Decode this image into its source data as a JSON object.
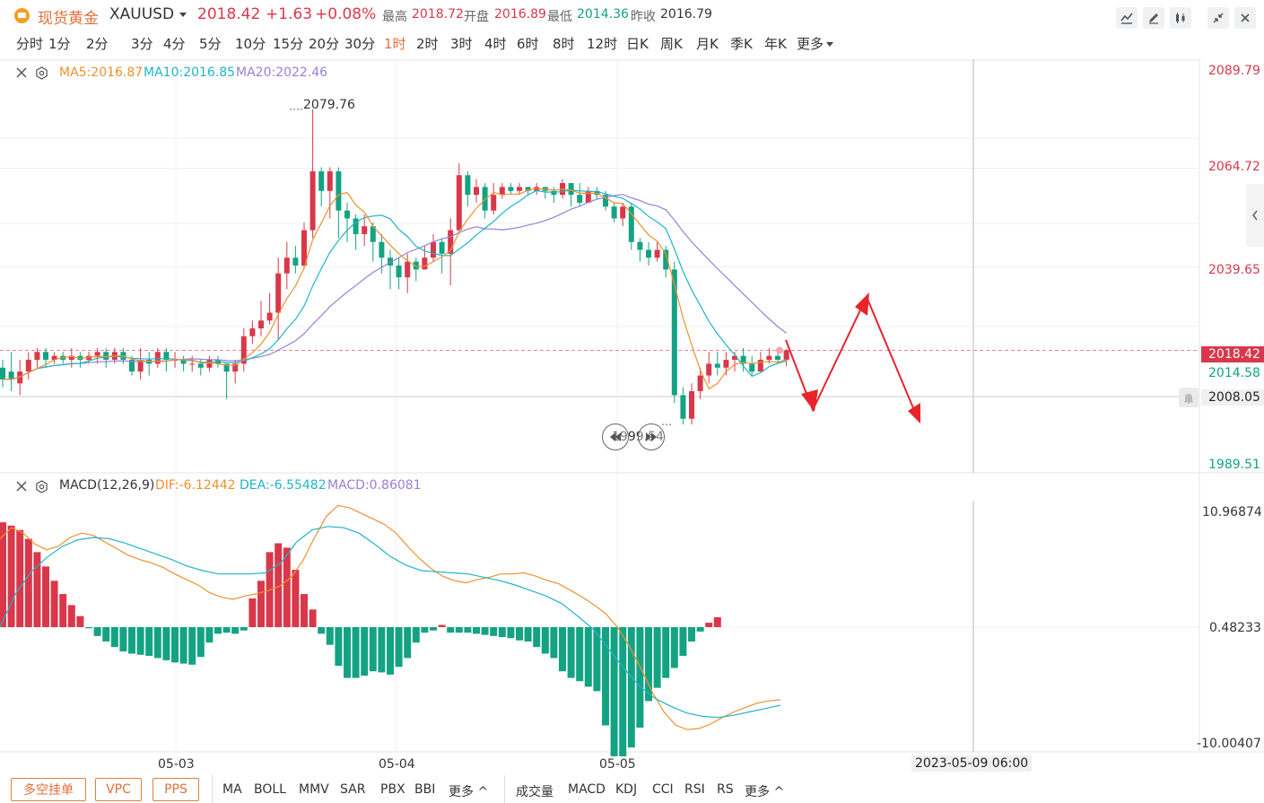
{
  "header": {
    "name": "现货黄金",
    "symbol": "XAUUSD",
    "price": "2018.42",
    "change": "+1.63",
    "change_pct": "+0.08%",
    "high_label": "最高",
    "high": "2018.72",
    "open_label": "开盘",
    "open": "2016.89",
    "low_label": "最低",
    "low": "2014.36",
    "prev_label": "昨收",
    "prev": "2016.79"
  },
  "periods": [
    "分时",
    "1分",
    "2分",
    "3分",
    "4分",
    "5分",
    "10分",
    "15分",
    "20分",
    "30分",
    "1时",
    "2时",
    "3时",
    "4时",
    "6时",
    "8时",
    "12时",
    "日K",
    "周K",
    "月K",
    "季K",
    "年K",
    "更多"
  ],
  "active_period": "1时",
  "main_pane": {
    "ma5": "MA5:2016.87",
    "ma10": "MA10:2016.85",
    "ma20": "MA20:2022.46",
    "price_axis": [
      "2089.79",
      "2064.72",
      "2039.65",
      "2014.58",
      "1989.51"
    ],
    "current_price_tag": "2018.42",
    "crosshair_price_tag": "2008.05",
    "high_annotation": "2079.76",
    "low_annotation": "1999.54"
  },
  "macd_pane": {
    "title": "MACD(12,26,9)",
    "dif": "DIF:-6.12442",
    "dea": "DEA:-6.55482",
    "macd": "MACD:0.86081",
    "axis": [
      "10.96874",
      "0.48233",
      "-10.00407"
    ]
  },
  "time_axis": [
    "05-03",
    "05-04",
    "05-05"
  ],
  "crosshair_time": "2023-05-09 06:00",
  "bottom": {
    "orders": [
      "多空挂单",
      "VPC",
      "PPS"
    ],
    "indicators_main": [
      "MA",
      "BOLL",
      "MMV",
      "SAR",
      "PBX",
      "BBI",
      "更多 ^"
    ],
    "indicators_sub": [
      "成交量",
      "MACD",
      "KDJ",
      "CCI",
      "RSI",
      "RS",
      "更多 ^"
    ]
  },
  "colors": {
    "up": "#d9384a",
    "down": "#13a383",
    "ma5": "#f0902e",
    "ma10": "#1fb5c8",
    "ma20": "#9a7fd8",
    "accent": "#e0703a"
  },
  "chart_data": {
    "type": "candlestick",
    "ylim": [
      1989.51,
      2089.79
    ],
    "candles": [
      [
        2014,
        2011,
        2016,
        2009
      ],
      [
        2013,
        2011,
        2018,
        2008
      ],
      [
        2010,
        2013,
        2016,
        2007
      ],
      [
        2013,
        2016,
        2018,
        2011
      ],
      [
        2016,
        2018,
        2019,
        2014
      ],
      [
        2018,
        2016,
        2019,
        2014
      ],
      [
        2016,
        2017,
        2018,
        2015
      ],
      [
        2017,
        2016,
        2018,
        2015
      ],
      [
        2016,
        2017,
        2019,
        2014
      ],
      [
        2017,
        2016,
        2018,
        2014
      ],
      [
        2016,
        2017,
        2018,
        2015
      ],
      [
        2017,
        2018,
        2019,
        2015
      ],
      [
        2018,
        2016,
        2019,
        2014
      ],
      [
        2016,
        2018,
        2019,
        2015
      ],
      [
        2018,
        2016,
        2019,
        2015
      ],
      [
        2016,
        2013,
        2017,
        2012
      ],
      [
        2013,
        2016,
        2019,
        2011
      ],
      [
        2016,
        2015,
        2018,
        2012
      ],
      [
        2015,
        2018,
        2019,
        2014
      ],
      [
        2018,
        2016,
        2019,
        2013
      ],
      [
        2016,
        2016,
        2018,
        2014
      ],
      [
        2016,
        2015,
        2017,
        2013
      ],
      [
        2015,
        2015,
        2017,
        2013
      ],
      [
        2015,
        2014,
        2016,
        2012
      ],
      [
        2014,
        2016,
        2017,
        2013
      ],
      [
        2016,
        2015,
        2017,
        2014
      ],
      [
        2015,
        2013,
        2015,
        2006
      ],
      [
        2013,
        2015,
        2016,
        2010
      ],
      [
        2015,
        2022,
        2024,
        2013
      ],
      [
        2022,
        2024,
        2026,
        2020
      ],
      [
        2024,
        2026,
        2031,
        2022
      ],
      [
        2026,
        2028,
        2033,
        2025
      ],
      [
        2028,
        2038,
        2042,
        2021
      ],
      [
        2038,
        2042,
        2046,
        2034
      ],
      [
        2042,
        2040,
        2045,
        2038
      ],
      [
        2040,
        2049,
        2051,
        2039
      ],
      [
        2049,
        2064,
        2079.76,
        2047
      ],
      [
        2064,
        2059,
        2065,
        2055
      ],
      [
        2059,
        2064,
        2065,
        2052
      ],
      [
        2064,
        2054,
        2065,
        2047
      ],
      [
        2054,
        2052,
        2056,
        2046
      ],
      [
        2052,
        2048,
        2053,
        2044
      ],
      [
        2048,
        2050,
        2053,
        2045
      ],
      [
        2050,
        2046,
        2051,
        2041
      ],
      [
        2046,
        2042,
        2048,
        2038
      ],
      [
        2042,
        2040,
        2044,
        2034
      ],
      [
        2040,
        2037,
        2042,
        2034
      ],
      [
        2037,
        2041,
        2043,
        2033
      ],
      [
        2041,
        2039,
        2042,
        2036
      ],
      [
        2039,
        2042,
        2045,
        2040
      ],
      [
        2042,
        2046,
        2048,
        2041
      ],
      [
        2046,
        2043,
        2047,
        2038
      ],
      [
        2043,
        2049,
        2052,
        2035
      ],
      [
        2049,
        2063,
        2066,
        2048
      ],
      [
        2063,
        2058,
        2064,
        2055
      ],
      [
        2058,
        2060,
        2062,
        2056
      ],
      [
        2060,
        2054,
        2061,
        2052
      ],
      [
        2054,
        2058,
        2061,
        2053
      ],
      [
        2058,
        2060,
        2061,
        2057
      ],
      [
        2060,
        2059,
        2061,
        2058
      ],
      [
        2059,
        2060,
        2061,
        2058
      ],
      [
        2060,
        2059,
        2060,
        2058
      ],
      [
        2059,
        2060,
        2061,
        2058
      ],
      [
        2060,
        2059,
        2060,
        2057
      ],
      [
        2059,
        2058,
        2060,
        2056
      ],
      [
        2058,
        2061,
        2062,
        2057
      ],
      [
        2061,
        2058,
        2061,
        2055
      ],
      [
        2058,
        2056,
        2061,
        2055
      ],
      [
        2056,
        2059,
        2060,
        2057
      ],
      [
        2059,
        2058,
        2060,
        2057
      ],
      [
        2058,
        2055,
        2059,
        2054
      ],
      [
        2055,
        2052,
        2056,
        2051
      ],
      [
        2052,
        2055,
        2056,
        2050
      ],
      [
        2055,
        2046,
        2056,
        2044
      ],
      [
        2046,
        2044,
        2047,
        2041
      ],
      [
        2044,
        2042,
        2046,
        2040
      ],
      [
        2042,
        2044,
        2046,
        2041
      ],
      [
        2044,
        2039,
        2045,
        2037
      ],
      [
        2039,
        2007,
        2041,
        2005
      ],
      [
        2007,
        2001,
        2009,
        1999.54
      ],
      [
        2001,
        2008,
        2010,
        1999.54
      ],
      [
        2008,
        2012,
        2014,
        2006
      ],
      [
        2012,
        2015,
        2018,
        2010
      ],
      [
        2015,
        2014,
        2018,
        2012
      ],
      [
        2014,
        2016,
        2018,
        2012
      ],
      [
        2016,
        2017,
        2018,
        2013
      ],
      [
        2017,
        2015,
        2019,
        2013
      ],
      [
        2015,
        2013,
        2017,
        2012
      ],
      [
        2013,
        2016,
        2018,
        2013
      ],
      [
        2016,
        2017,
        2019,
        2015
      ],
      [
        2017,
        2016,
        2019,
        2015
      ],
      [
        2016,
        2018.42,
        2018.72,
        2014.36
      ]
    ],
    "macd_hist": [
      9.5,
      9.2,
      8.8,
      8.0,
      6.8,
      5.5,
      4.2,
      3.0,
      2.0,
      1.0,
      -0.1,
      -0.8,
      -1.3,
      -1.8,
      -2.2,
      -2.4,
      -2.5,
      -2.6,
      -2.8,
      -3.0,
      -3.2,
      -3.3,
      -3.4,
      -2.7,
      -1.4,
      -0.6,
      -0.5,
      -0.6,
      -0.3,
      2.6,
      4.2,
      6.8,
      7.6,
      7.2,
      5.2,
      3.0,
      1.6,
      -0.6,
      -1.6,
      -3.5,
      -4.6,
      -4.6,
      -4.4,
      -4.0,
      -4.1,
      -4.3,
      -3.6,
      -2.8,
      -1.4,
      -0.5,
      -0.3,
      0.2,
      -0.5,
      -0.5,
      -0.5,
      -0.6,
      -0.7,
      -0.8,
      -0.9,
      -1.0,
      -1.2,
      -1.3,
      -1.8,
      -2.4,
      -2.8,
      -4.0,
      -4.6,
      -4.9,
      -5.4,
      -5.8,
      -8.9,
      -11.7,
      -11.7,
      -10.9,
      -9.1,
      -6.7,
      -5.5,
      -4.6,
      -3.7,
      -2.6,
      -1.3,
      -0.4,
      0.4,
      0.9
    ],
    "dif": [
      8.5,
      9.5,
      9.0,
      8.0,
      7.5,
      7.8,
      8.6,
      9.0,
      8.8,
      8.2,
      7.6,
      7.0,
      6.6,
      6.3,
      5.9,
      5.3,
      4.8,
      4.3,
      3.6,
      3.2,
      3.0,
      3.3,
      3.5,
      3.8,
      4.2,
      5.0,
      6.5,
      8.6,
      10.5,
      11.5,
      11.3,
      10.8,
      10.3,
      9.8,
      9.0,
      7.8,
      6.7,
      5.8,
      5.1,
      4.7,
      4.5,
      4.8,
      5.0,
      5.3,
      5.3,
      5.4,
      5.1,
      4.7,
      4.4,
      3.8,
      3.2,
      2.5,
      1.7,
      0.5,
      -1.2,
      -3.2,
      -5.4,
      -7.2,
      -8.4,
      -8.8,
      -8.7,
      -8.3,
      -7.7,
      -7.2,
      -6.8,
      -6.4,
      -6.2,
      -6.1
    ],
    "dea": [
      0.5,
      3.5,
      5.5,
      6.8,
      7.8,
      8.4,
      8.6,
      8.5,
      8.1,
      7.6,
      7.1,
      6.6,
      6.0,
      5.6,
      5.3,
      5.3,
      5.3,
      5.4,
      6.3,
      8.2,
      9.3,
      9.6,
      9.5,
      9.0,
      8.0,
      6.9,
      6.1,
      5.6,
      5.5,
      5.4,
      5.3,
      5.0,
      4.7,
      4.3,
      3.8,
      3.3,
      2.6,
      1.5,
      0.3,
      -1.5,
      -3.3,
      -4.9,
      -6.0,
      -6.7,
      -7.3,
      -7.6,
      -7.7,
      -7.5,
      -7.2,
      -6.9,
      -6.6
    ]
  }
}
